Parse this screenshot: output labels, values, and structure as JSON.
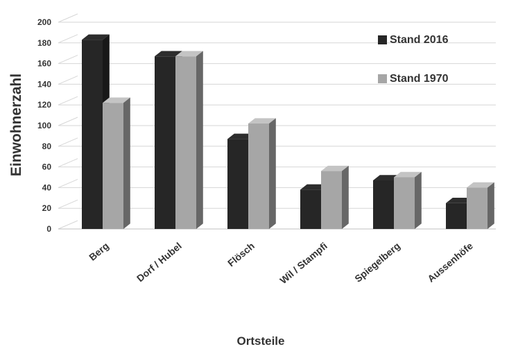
{
  "chart_data": {
    "type": "bar",
    "categories": [
      "Berg",
      "Dorf / Hubel",
      "Flösch",
      "Wil / Stampfi",
      "Spiegelberg",
      "Aussenhöfe"
    ],
    "series": [
      {
        "name": "Stand 2016",
        "values": [
          183,
          167,
          87,
          38,
          47,
          25
        ],
        "color": "#262626"
      },
      {
        "name": "Stand 1970",
        "values": [
          122,
          167,
          102,
          56,
          50,
          40
        ],
        "color": "#a6a6a6"
      }
    ],
    "xlabel": "Ortsteile",
    "ylabel": "Einwohnerzahl",
    "ylim": [
      0,
      200
    ],
    "yticks": [
      0,
      20,
      40,
      60,
      80,
      100,
      120,
      140,
      160,
      180,
      200
    ],
    "grid": true,
    "legend": "right",
    "style": "3d-clustered-column"
  }
}
